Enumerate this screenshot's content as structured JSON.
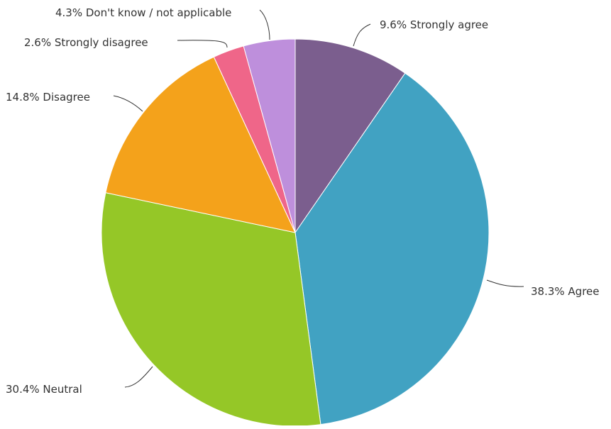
{
  "chart_data": {
    "type": "pie",
    "start_angle_deg": 0,
    "direction": "clockwise",
    "slices": [
      {
        "name": "Strongly agree",
        "value": 9.6,
        "label": "9.6% Strongly agree",
        "color": "#7B5E8E"
      },
      {
        "name": "Agree",
        "value": 38.3,
        "label": "38.3% Agree",
        "color": "#41A2C2"
      },
      {
        "name": "Neutral",
        "value": 30.4,
        "label": "30.4% Neutral",
        "color": "#95C727"
      },
      {
        "name": "Disagree",
        "value": 14.8,
        "label": "14.8% Disagree",
        "color": "#F4A21B"
      },
      {
        "name": "Strongly disagree",
        "value": 2.6,
        "label": "2.6% Strongly disagree",
        "color": "#EF6689"
      },
      {
        "name": "Don't know / not applicable",
        "value": 4.3,
        "label": "4.3% Don't know / not applicable",
        "color": "#BE8FDC"
      }
    ]
  }
}
